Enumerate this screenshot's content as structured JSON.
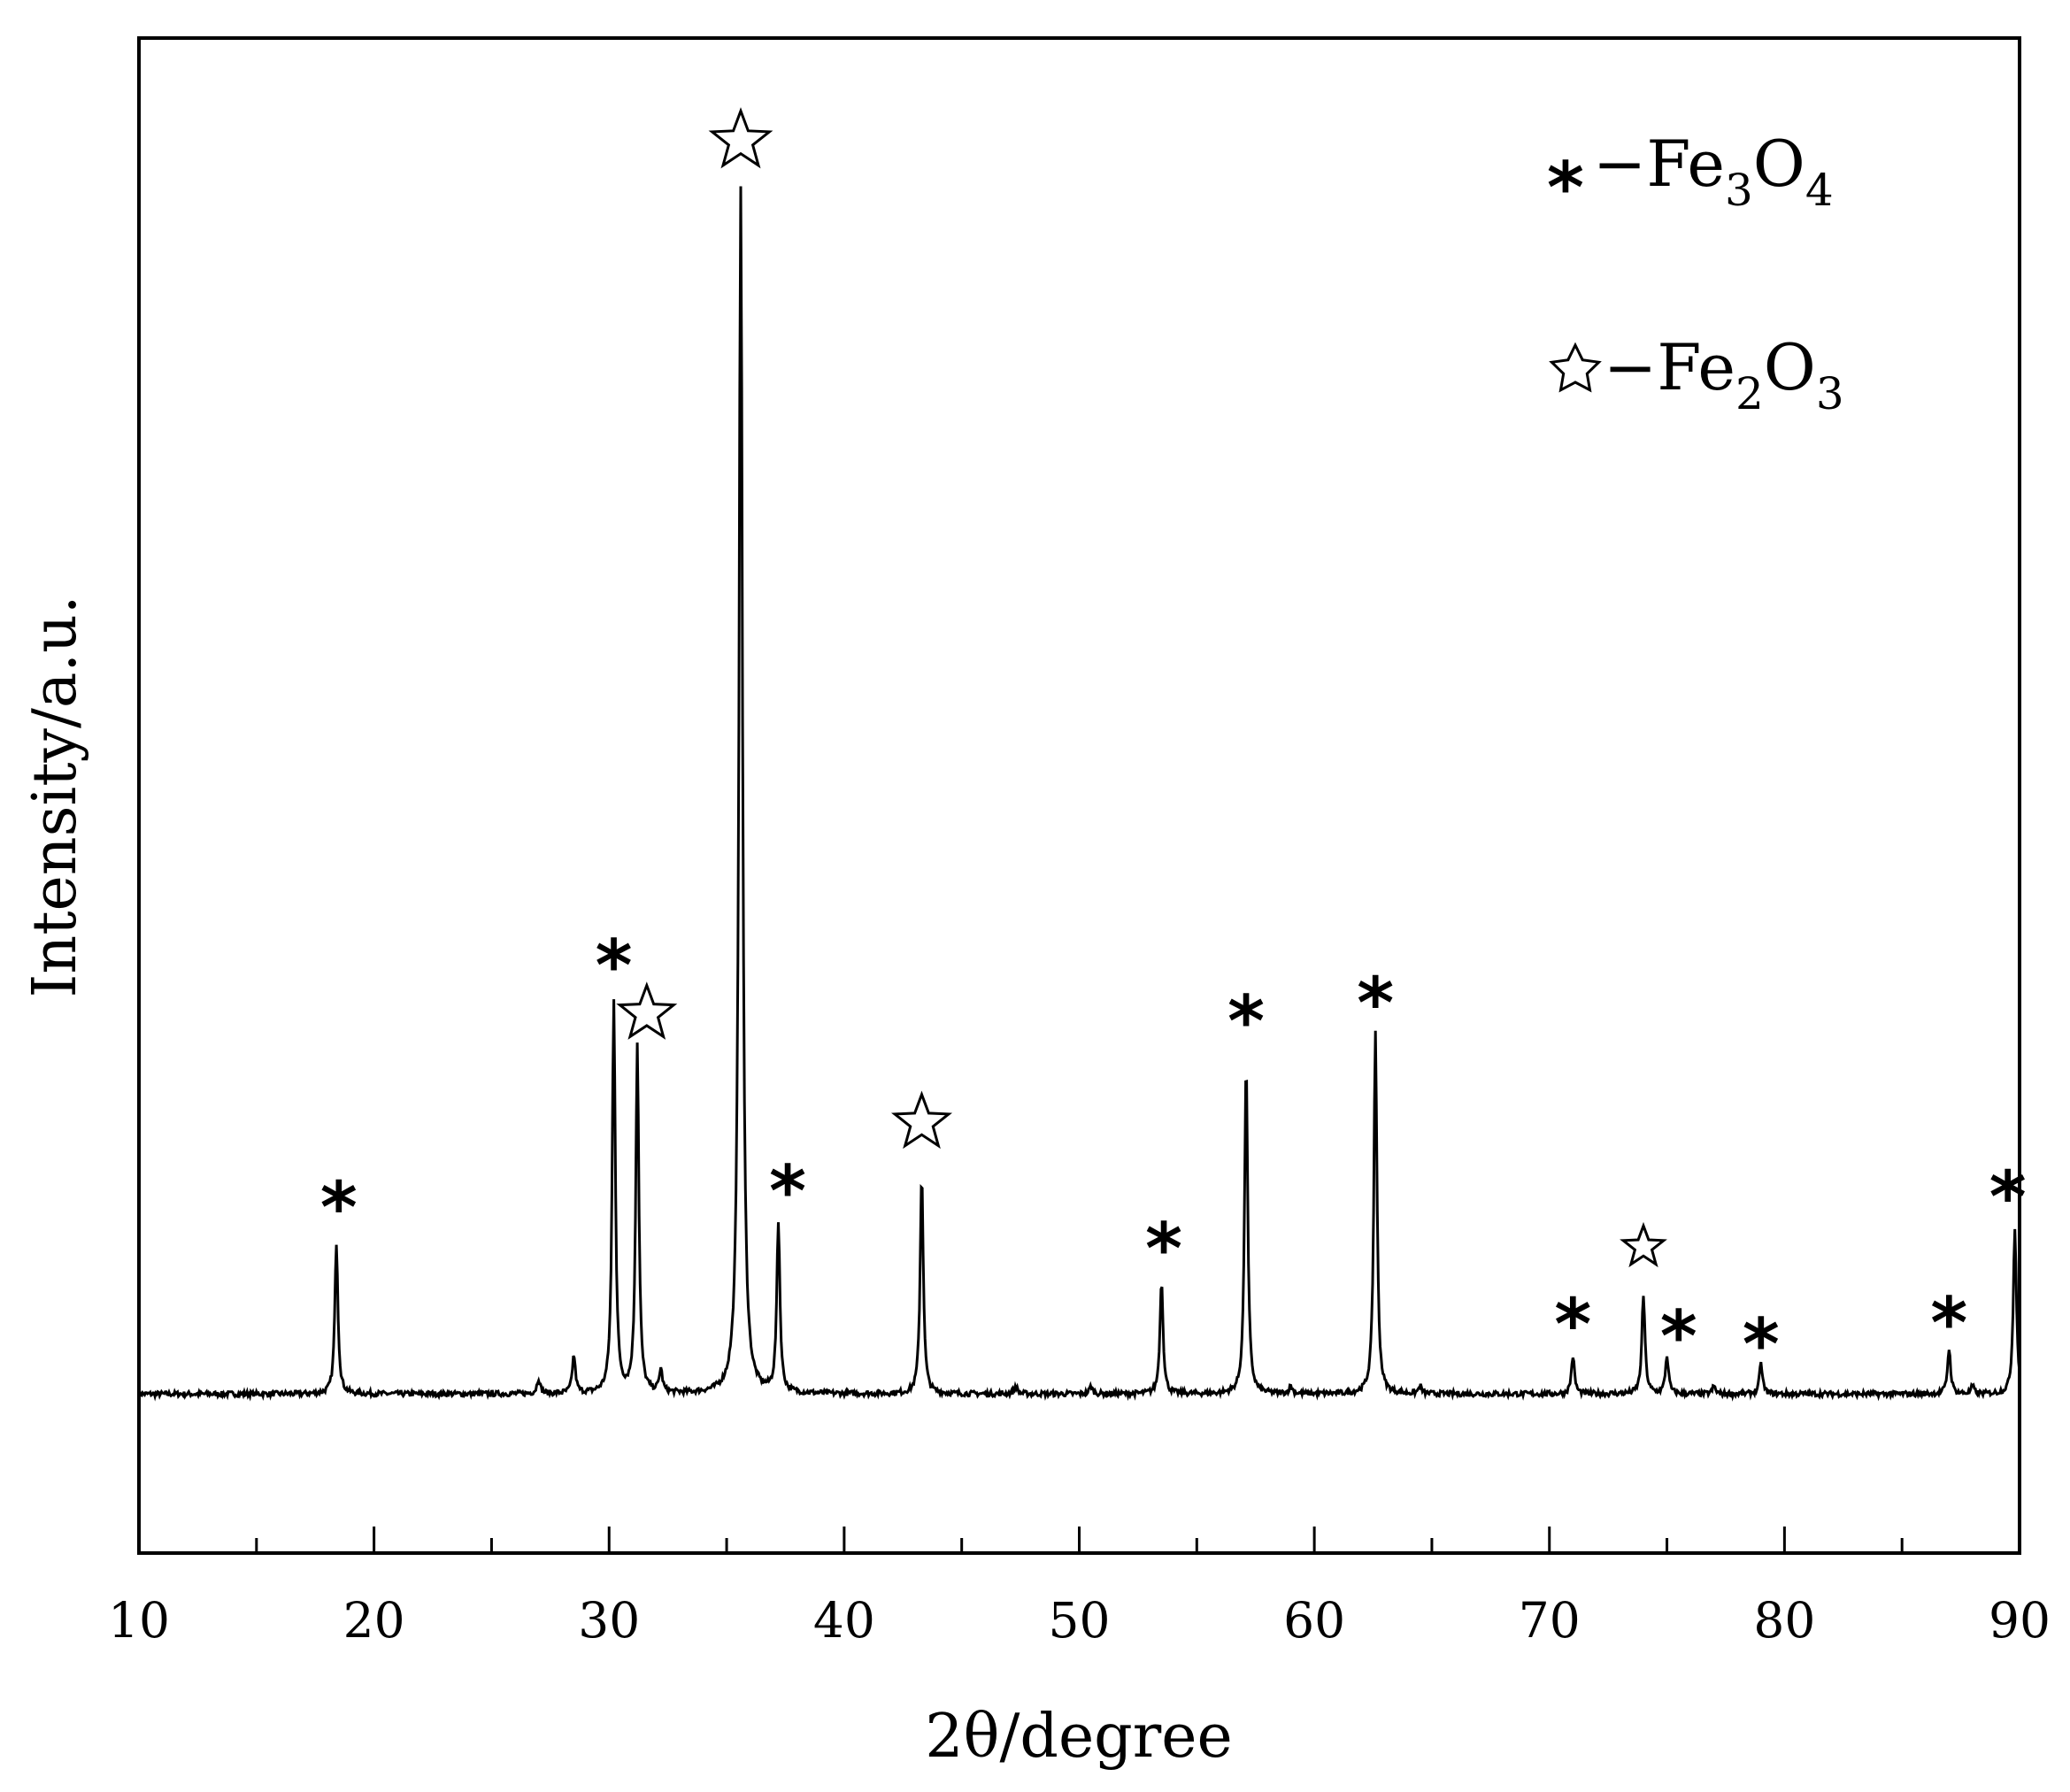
{
  "chart_data": {
    "type": "line",
    "xlabel": "2θ/degree",
    "ylabel": "Intensity/a.u.",
    "xlim": [
      10,
      90
    ],
    "ylim": [
      0,
      100
    ],
    "x_ticks": [
      "10",
      "20",
      "30",
      "40",
      "50",
      "60",
      "70",
      "80",
      "90"
    ],
    "x_tick_values": [
      10,
      20,
      30,
      40,
      50,
      60,
      70,
      80,
      90
    ],
    "x_minor_tick_values": [
      15,
      25,
      35,
      45,
      55,
      65,
      75,
      85
    ],
    "grid": false,
    "baseline": 10.5,
    "peaks": [
      {
        "x": 18.4,
        "y": 20.5
      },
      {
        "x": 27.0,
        "y": 11.5
      },
      {
        "x": 28.5,
        "y": 13.0
      },
      {
        "x": 30.2,
        "y": 36.5
      },
      {
        "x": 31.2,
        "y": 33.5
      },
      {
        "x": 32.2,
        "y": 12.0
      },
      {
        "x": 35.6,
        "y": 90.0
      },
      {
        "x": 37.2,
        "y": 21.7
      },
      {
        "x": 43.3,
        "y": 25.0
      },
      {
        "x": 47.3,
        "y": 11.0
      },
      {
        "x": 50.5,
        "y": 11.0
      },
      {
        "x": 53.5,
        "y": 18.0
      },
      {
        "x": 57.1,
        "y": 32.5
      },
      {
        "x": 59.0,
        "y": 11.0
      },
      {
        "x": 62.6,
        "y": 34.5
      },
      {
        "x": 64.5,
        "y": 11.0
      },
      {
        "x": 71.0,
        "y": 13.0
      },
      {
        "x": 74.0,
        "y": 17.0
      },
      {
        "x": 75.0,
        "y": 13.0
      },
      {
        "x": 77.0,
        "y": 11.0
      },
      {
        "x": 79.0,
        "y": 12.5
      },
      {
        "x": 87.0,
        "y": 13.5
      },
      {
        "x": 88.0,
        "y": 11.0
      },
      {
        "x": 89.8,
        "y": 21.5
      }
    ],
    "markers": [
      {
        "symbol": "asterisk",
        "x": 18.5,
        "y": 23.5
      },
      {
        "symbol": "asterisk",
        "x": 30.2,
        "y": 39.5
      },
      {
        "symbol": "star",
        "x": 31.6,
        "y": 35.6
      },
      {
        "symbol": "star",
        "x": 35.6,
        "y": 93.2
      },
      {
        "symbol": "asterisk",
        "x": 37.6,
        "y": 24.6
      },
      {
        "symbol": "star",
        "x": 43.3,
        "y": 28.4
      },
      {
        "symbol": "asterisk",
        "x": 53.6,
        "y": 20.8
      },
      {
        "symbol": "asterisk",
        "x": 57.1,
        "y": 35.8
      },
      {
        "symbol": "asterisk",
        "x": 62.6,
        "y": 37.0
      },
      {
        "symbol": "asterisk",
        "x": 71.0,
        "y": 15.8
      },
      {
        "symbol": "star",
        "x": 74.0,
        "y": 20.2
      },
      {
        "symbol": "asterisk",
        "x": 75.5,
        "y": 15.0
      },
      {
        "symbol": "asterisk",
        "x": 79.0,
        "y": 14.5
      },
      {
        "symbol": "asterisk",
        "x": 87.0,
        "y": 15.9
      },
      {
        "symbol": "asterisk",
        "x": 89.5,
        "y": 24.2
      }
    ],
    "legend": {
      "placement": "top-right",
      "entries": [
        {
          "symbol": "asterisk",
          "label_prefix": "−Fe",
          "sub1": "3",
          "mid": "O",
          "sub2": "4"
        },
        {
          "symbol": "star",
          "label_prefix": "−Fe",
          "sub1": "2",
          "mid": "O",
          "sub2": "3"
        }
      ]
    },
    "line_color": "#000000"
  }
}
